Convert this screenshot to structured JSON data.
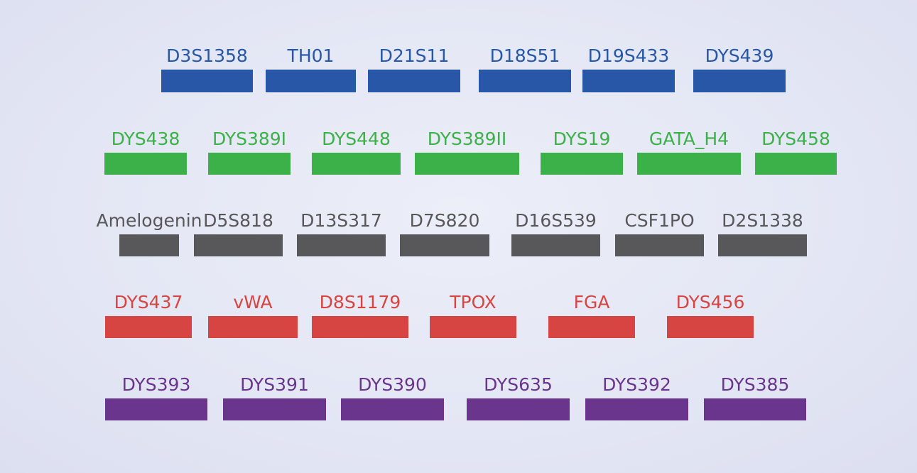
{
  "colors": {
    "blue": "#2757a6",
    "green": "#3db149",
    "gray": "#58585a",
    "red": "#d64542",
    "purple": "#6a358d"
  },
  "rows": [
    {
      "color": "blue",
      "markers": [
        "D3S1358",
        "TH01",
        "D21S11",
        "D18S51",
        "D19S433",
        "DYS439"
      ]
    },
    {
      "color": "green",
      "markers": [
        "DYS438",
        "DYS389I",
        "DYS448",
        "DYS389II",
        "DYS19",
        "GATA_H4",
        "DYS458"
      ]
    },
    {
      "color": "gray",
      "markers": [
        "Amelogenin",
        "D5S818",
        "D13S317",
        "D7S820",
        "D16S539",
        "CSF1PO",
        "D2S1338"
      ]
    },
    {
      "color": "red",
      "markers": [
        "DYS437",
        "vWA",
        "D8S1179",
        "TPOX",
        "FGA",
        "DYS456"
      ]
    },
    {
      "color": "purple",
      "markers": [
        "DYS393",
        "DYS391",
        "DYS390",
        "DYS635",
        "DYS392",
        "DYS385"
      ]
    }
  ]
}
